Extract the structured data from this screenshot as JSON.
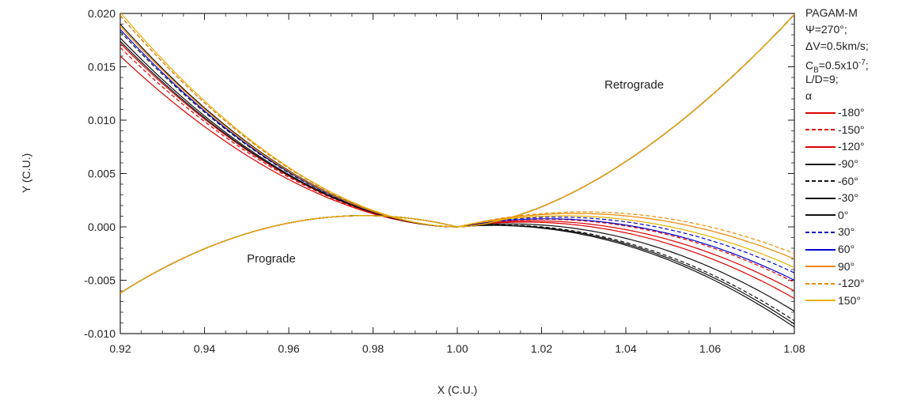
{
  "chart_data": {
    "type": "line",
    "title": "",
    "xlabel": "X (C.U.)",
    "ylabel": "Y (C.U.)",
    "xlim": [
      0.92,
      1.08
    ],
    "ylim": [
      -0.01,
      0.02
    ],
    "xticks": [
      "0.92",
      "0.94",
      "0.96",
      "0.98",
      "1.00",
      "1.02",
      "1.04",
      "1.06",
      "1.08"
    ],
    "yticks": [
      "0.020",
      "0.015",
      "0.010",
      "0.005",
      "0.000",
      "-0.005",
      "-0.010"
    ],
    "annotations": {
      "retrograde": "Retrograde",
      "prograde": "Prograde"
    },
    "legend": {
      "header": [
        "PAGAM-M",
        "Ψ=270°;",
        "ΔV=0.5km/s;"
      ],
      "cb_prefix": "C",
      "cb_sub": "B",
      "cb_mid": "=0.5x10",
      "cb_sup": "-7",
      "cb_suffix": ";",
      "ld": "L/D=9;",
      "alpha": "α"
    },
    "series": [
      {
        "name": "-180°",
        "color": "#dd0000",
        "dash": "solid",
        "prograde": [
          0.016,
          -0.0063,
          -0.0062
        ],
        "retrograde": [
          0.0198,
          0.0199,
          -0.006
        ]
      },
      {
        "name": "-150°",
        "color": "#dd0000",
        "dash": "dashed",
        "prograde": [
          0.0168,
          -0.0062,
          -0.0062
        ],
        "retrograde": [
          0.0199,
          0.0199,
          -0.0052
        ]
      },
      {
        "name": "-120°",
        "color": "#dd0000",
        "dash": "solid",
        "prograde": [
          0.0172,
          -0.0062,
          -0.0062
        ],
        "retrograde": [
          0.0199,
          0.0199,
          -0.0067
        ]
      },
      {
        "name": "-90°",
        "color": "#111111",
        "dash": "solid",
        "prograde": [
          0.0174,
          -0.0062,
          -0.0062
        ],
        "retrograde": [
          0.0198,
          0.0199,
          -0.0079
        ]
      },
      {
        "name": "-60°",
        "color": "#111111",
        "dash": "dashed",
        "prograde": [
          0.0183,
          -0.0062,
          -0.0062
        ],
        "retrograde": [
          0.0199,
          0.0199,
          -0.0088
        ]
      },
      {
        "name": "-30°",
        "color": "#111111",
        "dash": "solid",
        "prograde": [
          0.0177,
          -0.0062,
          -0.0062
        ],
        "retrograde": [
          0.0199,
          0.0199,
          -0.0091
        ]
      },
      {
        "name": "0°",
        "color": "#111111",
        "dash": "solid",
        "prograde": [
          0.019,
          -0.0062,
          -0.0062
        ],
        "retrograde": [
          0.0198,
          0.0199,
          -0.0094
        ]
      },
      {
        "name": "30°",
        "color": "#0000cc",
        "dash": "dashed",
        "prograde": [
          0.0198,
          -0.0062,
          -0.0062
        ],
        "retrograde": [
          0.0199,
          0.0199,
          -0.0043
        ]
      },
      {
        "name": "60°",
        "color": "#0000cc",
        "dash": "solid",
        "prograde": [
          0.0185,
          -0.0062,
          -0.0062
        ],
        "retrograde": [
          0.0199,
          0.0199,
          -0.005
        ]
      },
      {
        "name": "90°",
        "color": "#ee8800",
        "dash": "solid",
        "prograde": [
          0.0188,
          -0.0062,
          -0.0062
        ],
        "retrograde": [
          0.0198,
          0.0199,
          -0.003
        ]
      },
      {
        "name": "-120°",
        "color": "#ee8800",
        "dash": "dashed",
        "prograde": [
          0.0198,
          -0.0062,
          -0.0062
        ],
        "retrograde": [
          0.0199,
          0.0199,
          -0.0025
        ]
      },
      {
        "name": "150°",
        "color": "#e8b000",
        "dash": "solid",
        "prograde": [
          0.0201,
          -0.0062,
          -0.0062
        ],
        "retrograde": [
          0.0199,
          0.0199,
          -0.0038
        ]
      }
    ]
  }
}
